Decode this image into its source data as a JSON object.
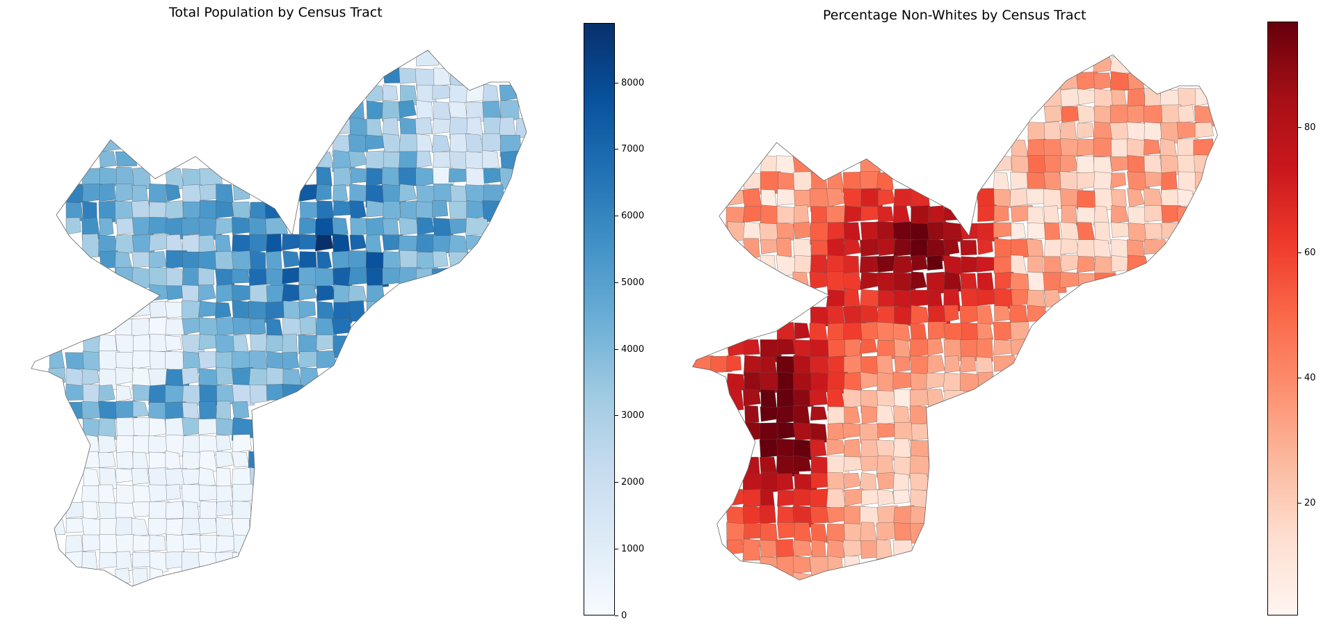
{
  "maps": [
    {
      "title": "Total Population by Census Tract",
      "colormap": "Blues",
      "ramp": [
        "#f7fbff",
        "#deebf7",
        "#c6dbef",
        "#9ecae1",
        "#6baed6",
        "#4292c6",
        "#2171b5",
        "#08519c",
        "#08306b"
      ],
      "range": [
        0,
        8900
      ],
      "ticks": [
        "0",
        "1000",
        "2000",
        "3000",
        "4000",
        "5000",
        "6000",
        "7000",
        "8000"
      ]
    },
    {
      "title": "Percentage Non-Whites by Census Tract",
      "colormap": "Reds",
      "ramp": [
        "#fff5f0",
        "#fee0d2",
        "#fcbba1",
        "#fc9272",
        "#fb6a4a",
        "#ef3b2c",
        "#cb181d",
        "#a50f15",
        "#67000d"
      ],
      "range": [
        2,
        97
      ],
      "ticks": [
        "20",
        "40",
        "60",
        "80"
      ]
    }
  ]
}
